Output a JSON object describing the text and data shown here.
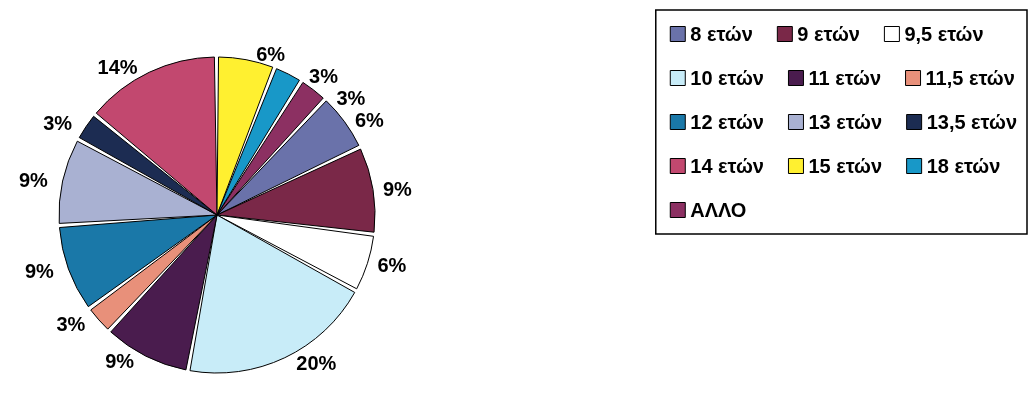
{
  "chart_data": {
    "type": "pie",
    "categories": [
      "8 ετών",
      "9 ετών",
      "9,5 ετών",
      "10 ετών",
      "11 ετών",
      "11,5 ετών",
      "12 ετών",
      "13 ετών",
      "13,5 ετών",
      "14 ετών",
      "15 ετών",
      "18 ετών",
      "ΑΛΛΟ"
    ],
    "values": [
      6,
      9,
      6,
      20,
      9,
      3,
      9,
      9,
      3,
      14,
      6,
      3,
      3
    ],
    "colors": [
      "#6a72aa",
      "#7a2848",
      "#ffffff",
      "#c8ecf8",
      "#4a1c4e",
      "#e8907a",
      "#1a78a8",
      "#a9b1d2",
      "#1c2c52",
      "#c2486f",
      "#fff030",
      "#1898c8",
      "#8c3062"
    ],
    "value_labels": [
      "6%",
      "9%",
      "6%",
      "20%",
      "9%",
      "3%",
      "9%",
      "9%",
      "3%",
      "14%",
      "6%",
      "3%",
      "3%"
    ],
    "legend": "right"
  }
}
